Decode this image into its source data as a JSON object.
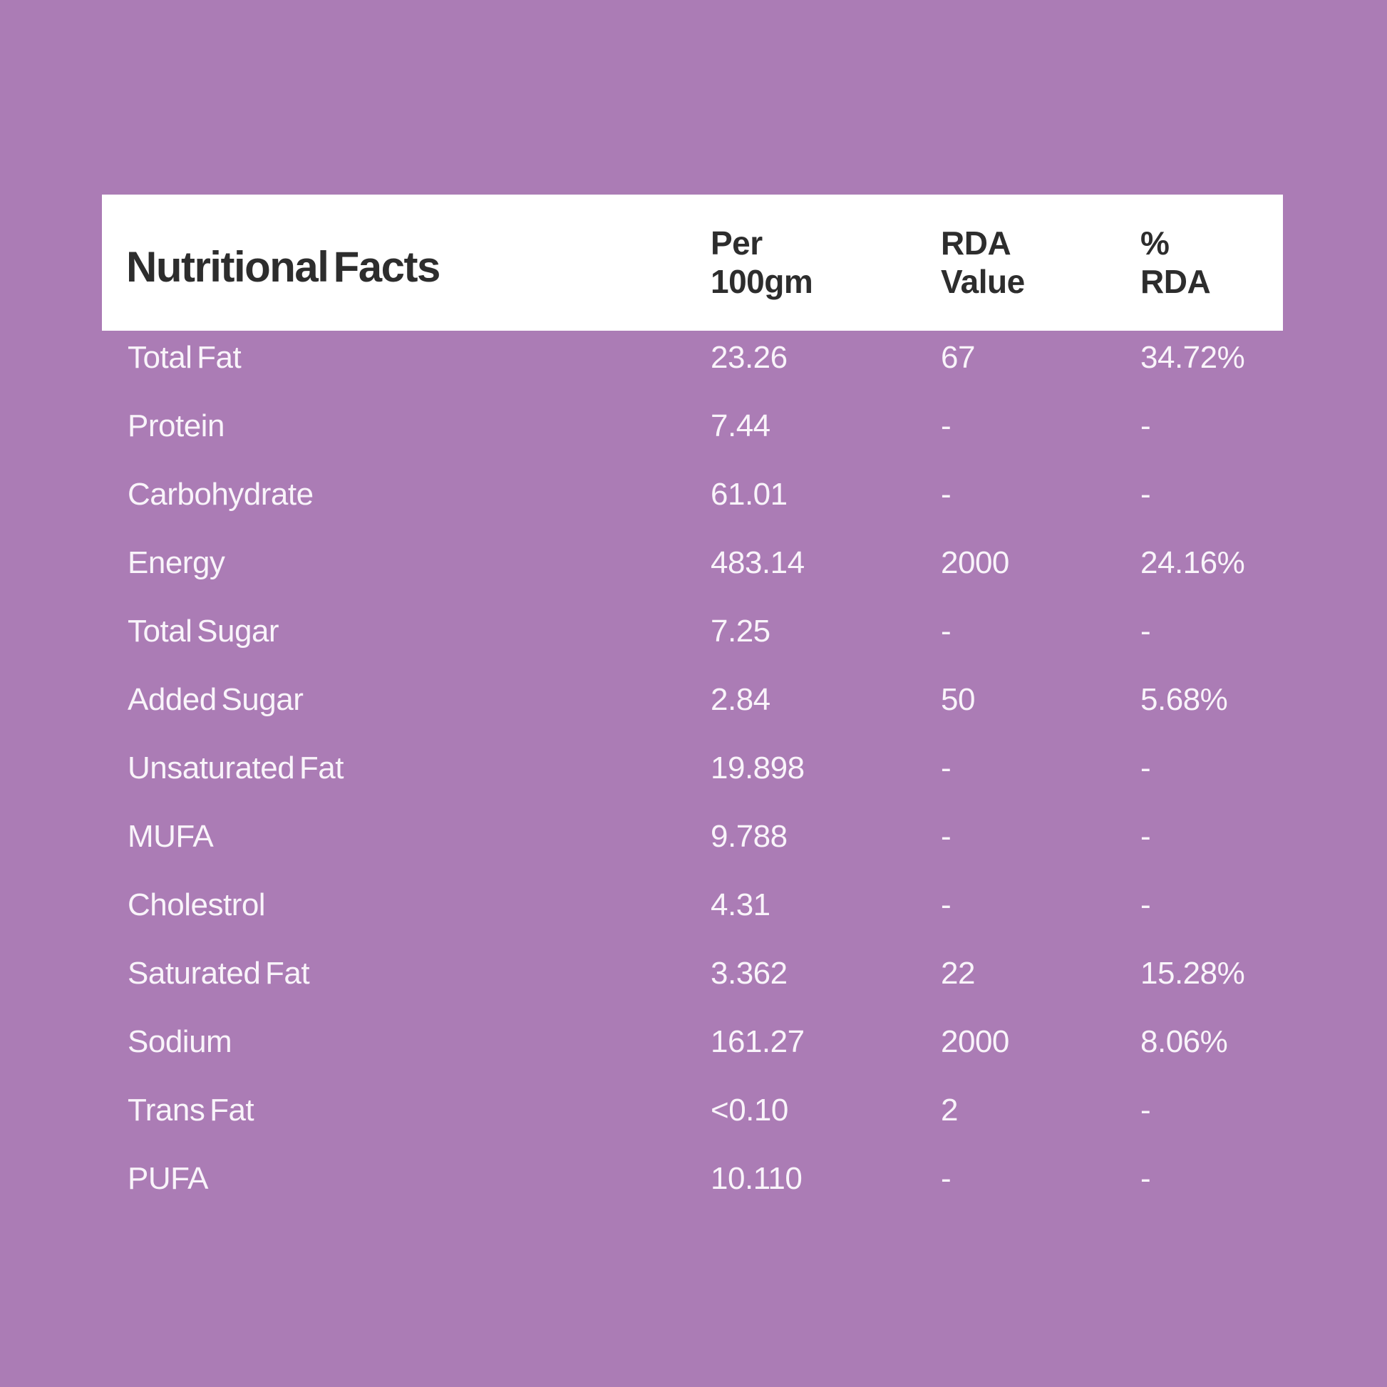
{
  "colors": {
    "bg": "#ab7cb5",
    "panel": "#ffffff",
    "ink": "#2d2d2d",
    "row_ink": "#f9f4fa"
  },
  "table": {
    "title": "Nutritional Facts",
    "columns": [
      {
        "line1": "Per",
        "line2": "100gm"
      },
      {
        "line1": "RDA",
        "line2": "Value"
      },
      {
        "line1": "%",
        "line2": "RDA"
      }
    ],
    "rows": [
      {
        "label": "Total Fat",
        "per": "23.26",
        "rda": "67",
        "pct": "34.72%"
      },
      {
        "label": "Protein",
        "per": "7.44",
        "rda": "-",
        "pct": "-"
      },
      {
        "label": "Carbohydrate",
        "per": "61.01",
        "rda": "-",
        "pct": "-"
      },
      {
        "label": "Energy",
        "per": "483.14",
        "rda": "2000",
        "pct": "24.16%"
      },
      {
        "label": "Total Sugar",
        "per": "7.25",
        "rda": "-",
        "pct": "-"
      },
      {
        "label": "Added Sugar",
        "per": "2.84",
        "rda": "50",
        "pct": "5.68%"
      },
      {
        "label": "Unsaturated Fat",
        "per": "19.898",
        "rda": "-",
        "pct": "-"
      },
      {
        "label": "MUFA",
        "per": "9.788",
        "rda": "-",
        "pct": "-"
      },
      {
        "label": "Cholestrol",
        "per": "4.31",
        "rda": "-",
        "pct": "-"
      },
      {
        "label": "Saturated Fat",
        "per": "3.362",
        "rda": "22",
        "pct": "15.28%"
      },
      {
        "label": "Sodium",
        "per": "161.27",
        "rda": "2000",
        "pct": "8.06%"
      },
      {
        "label": "Trans Fat",
        "per": "<0.10",
        "rda": "2",
        "pct": "-"
      },
      {
        "label": "PUFA",
        "per": "10.110",
        "rda": "-",
        "pct": "-"
      }
    ]
  }
}
